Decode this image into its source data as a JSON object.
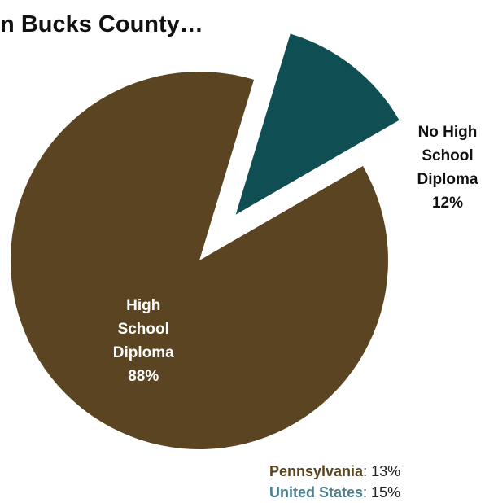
{
  "title": "in Bucks County…",
  "chart_data": {
    "type": "pie",
    "title": "in Bucks County…",
    "slices": [
      {
        "label_lines": [
          "High",
          "School",
          "Diploma"
        ],
        "value": 88,
        "value_label": "88%",
        "color": "#5a4421",
        "label_color": "#ffffff",
        "exploded": false
      },
      {
        "label_lines": [
          "No High",
          "School",
          "Diploma"
        ],
        "value": 12,
        "value_label": "12%",
        "color": "#0f4e52",
        "label_color": "#111111",
        "exploded": true
      }
    ]
  },
  "comparisons": [
    {
      "name": "Pennsylvania",
      "separator": ": ",
      "value": "13%",
      "color": "#5a4421"
    },
    {
      "name": "United States",
      "separator": ": ",
      "value": "15%",
      "color": "#4a8090"
    }
  ]
}
